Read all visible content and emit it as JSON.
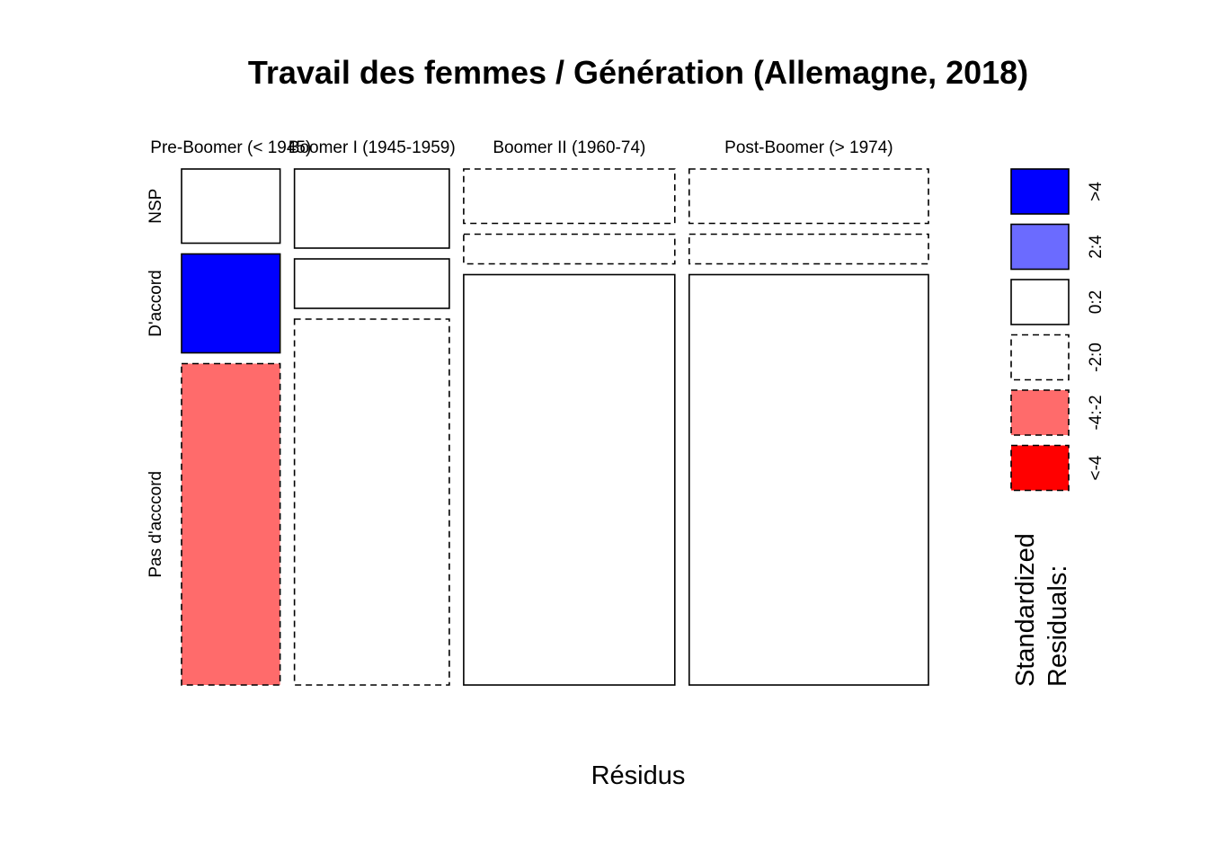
{
  "chart_data": {
    "type": "mosaic",
    "title": "Travail des femmes / Génération (Allemagne, 2018)",
    "xlabel": "Résidus",
    "legend_title": [
      "Standardized",
      "Residuals:"
    ],
    "columns": [
      "Pre-Boomer (< 1945)",
      "Boomer I (1945-1959)",
      "Boomer II (1960-74)",
      "Post-Boomer (> 1974)"
    ],
    "column_proportions": [
      0.14,
      0.22,
      0.3,
      0.34
    ],
    "rows": [
      "NSP",
      "D'accord",
      "Pas d'acccord"
    ],
    "cell_proportions": [
      [
        0.15,
        0.2,
        0.65
      ],
      [
        0.16,
        0.1,
        0.74
      ],
      [
        0.11,
        0.06,
        0.83
      ],
      [
        0.11,
        0.06,
        0.83
      ]
    ],
    "residual_class": [
      [
        "0:2",
        ">4",
        "-4:-2"
      ],
      [
        "0:2",
        "0:2",
        "-2:0"
      ],
      [
        "-2:0",
        "-2:0",
        "0:2"
      ],
      [
        "-2:0",
        "-2:0",
        "0:2"
      ]
    ],
    "legend": [
      {
        "label": ">4",
        "color": "#0000ff",
        "dashed": false
      },
      {
        "label": "2:4",
        "color": "#6b6bff",
        "dashed": false
      },
      {
        "label": "0:2",
        "color": "#ffffff",
        "dashed": false
      },
      {
        "label": "-2:0",
        "color": "#ffffff",
        "dashed": true
      },
      {
        "label": "-4:-2",
        "color": "#ff6b6b",
        "dashed": true
      },
      {
        "label": "<-4",
        "color": "#ff0000",
        "dashed": true
      }
    ]
  }
}
